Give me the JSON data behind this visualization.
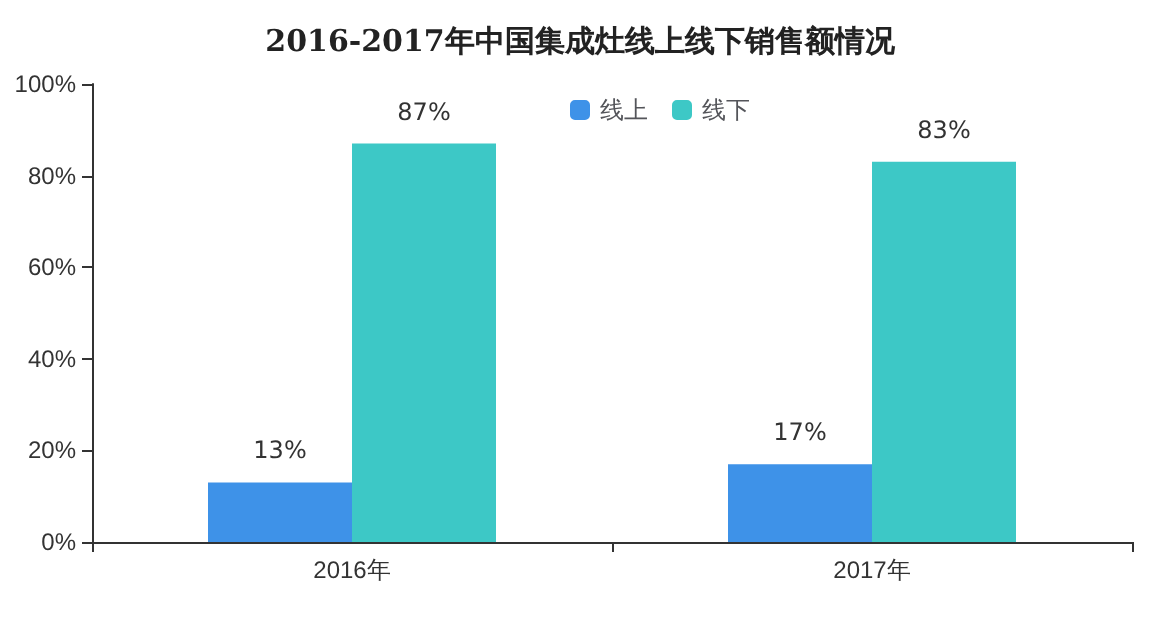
{
  "chart_data": {
    "type": "bar",
    "title": "2016-2017年中国集成灶线上线下销售额情况",
    "categories": [
      "2016年",
      "2017年"
    ],
    "series": [
      {
        "name": "线上",
        "color": "#3e92e8",
        "values": [
          13,
          17
        ],
        "value_labels": [
          "13%",
          "17%"
        ]
      },
      {
        "name": "线下",
        "color": "#3dc8c6",
        "values": [
          87,
          83
        ],
        "value_labels": [
          "87%",
          "83%"
        ]
      }
    ],
    "ylim": [
      0,
      100
    ],
    "yticks": [
      {
        "value": 0,
        "label": "0%"
      },
      {
        "value": 20,
        "label": "20%"
      },
      {
        "value": 40,
        "label": "40%"
      },
      {
        "value": 60,
        "label": "60%"
      },
      {
        "value": 80,
        "label": "80%"
      },
      {
        "value": 100,
        "label": "100%"
      }
    ],
    "grid": false,
    "legend": "top right"
  }
}
